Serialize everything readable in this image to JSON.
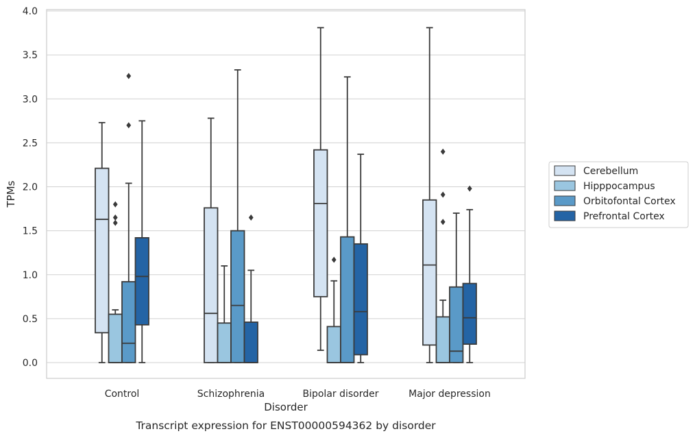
{
  "chart_data": {
    "type": "box",
    "title": "",
    "caption": "Transcript expression for ENST00000594362 by disorder",
    "xlabel": "Disorder",
    "ylabel": "TPMs",
    "ylim": [
      -0.18,
      4.02
    ],
    "yticks": [
      "0.0",
      "0.5",
      "1.0",
      "1.5",
      "2.0",
      "2.5",
      "3.0",
      "3.5",
      "4.0"
    ],
    "categories": [
      "Control",
      "Schizophrenia",
      "Bipolar disorder",
      "Major depression"
    ],
    "grid": "horizontal",
    "legend_position": "right",
    "series": [
      {
        "name": "Cerebellum",
        "color": "#d4e3f2",
        "boxes": [
          {
            "whislo": 0.0,
            "q1": 0.34,
            "med": 1.63,
            "q3": 2.21,
            "whishi": 2.73,
            "fliers": []
          },
          {
            "whislo": 0.0,
            "q1": 0.0,
            "med": 0.56,
            "q3": 1.76,
            "whishi": 2.78,
            "fliers": []
          },
          {
            "whislo": 0.14,
            "q1": 0.75,
            "med": 1.81,
            "q3": 2.42,
            "whishi": 3.81,
            "fliers": []
          },
          {
            "whislo": 0.0,
            "q1": 0.2,
            "med": 1.11,
            "q3": 1.85,
            "whishi": 3.81,
            "fliers": []
          }
        ]
      },
      {
        "name": "Hipppocampus",
        "color": "#9ac6e0",
        "boxes": [
          {
            "whislo": 0.0,
            "q1": 0.0,
            "med": 0.0,
            "q3": 0.55,
            "whishi": 0.6,
            "fliers": [
              1.59,
              1.65,
              1.8
            ]
          },
          {
            "whislo": 0.0,
            "q1": 0.0,
            "med": 0.0,
            "q3": 0.45,
            "whishi": 1.1,
            "fliers": []
          },
          {
            "whislo": 0.0,
            "q1": 0.0,
            "med": 0.0,
            "q3": 0.41,
            "whishi": 0.93,
            "fliers": [
              1.17
            ]
          },
          {
            "whislo": 0.0,
            "q1": 0.0,
            "med": 0.0,
            "q3": 0.52,
            "whishi": 0.71,
            "fliers": [
              1.6,
              1.91,
              2.4
            ]
          }
        ]
      },
      {
        "name": "Orbitofontal Cortex",
        "color": "#5a9ac8",
        "boxes": [
          {
            "whislo": 0.0,
            "q1": 0.0,
            "med": 0.22,
            "q3": 0.92,
            "whishi": 2.04,
            "fliers": [
              2.7,
              3.26
            ]
          },
          {
            "whislo": 0.0,
            "q1": 0.0,
            "med": 0.65,
            "q3": 1.5,
            "whishi": 3.33,
            "fliers": []
          },
          {
            "whislo": 0.0,
            "q1": 0.0,
            "med": 0.0,
            "q3": 1.43,
            "whishi": 3.25,
            "fliers": []
          },
          {
            "whislo": 0.0,
            "q1": 0.0,
            "med": 0.13,
            "q3": 0.86,
            "whishi": 1.7,
            "fliers": []
          }
        ]
      },
      {
        "name": "Prefrontal Cortex",
        "color": "#2464a5",
        "boxes": [
          {
            "whislo": 0.0,
            "q1": 0.43,
            "med": 0.98,
            "q3": 1.42,
            "whishi": 2.75,
            "fliers": []
          },
          {
            "whislo": 0.0,
            "q1": 0.0,
            "med": 0.0,
            "q3": 0.46,
            "whishi": 1.05,
            "fliers": [
              1.65
            ]
          },
          {
            "whislo": 0.0,
            "q1": 0.09,
            "med": 0.58,
            "q3": 1.35,
            "whishi": 2.37,
            "fliers": []
          },
          {
            "whislo": 0.0,
            "q1": 0.21,
            "med": 0.51,
            "q3": 0.9,
            "whishi": 1.74,
            "fliers": [
              1.98
            ]
          }
        ]
      }
    ]
  }
}
